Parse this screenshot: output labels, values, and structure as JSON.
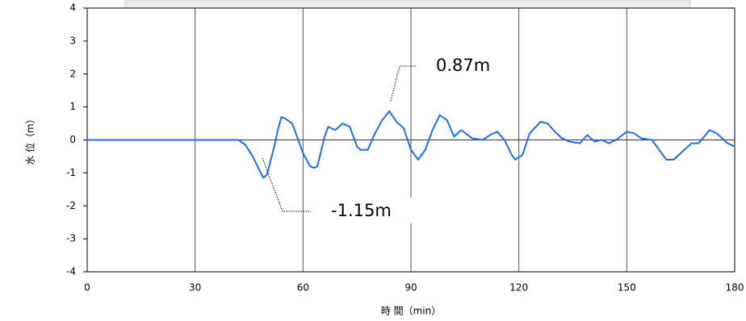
{
  "chart_data": {
    "type": "line",
    "y_label": "水 位（m）",
    "x_label": "時 間（min）",
    "x": [
      0,
      42,
      44,
      46,
      48,
      49,
      50,
      52,
      53,
      54,
      55,
      57,
      58,
      60,
      62,
      63,
      64,
      66,
      67,
      69,
      71,
      73,
      75,
      76,
      78,
      80,
      82,
      84,
      86,
      88,
      90,
      92,
      94,
      96,
      98,
      100,
      102,
      104,
      107,
      110,
      112,
      114,
      116,
      118,
      119,
      121,
      123,
      126,
      128,
      130,
      132,
      134,
      137,
      139,
      141,
      143,
      145,
      147,
      150,
      152,
      154,
      157,
      159,
      161,
      163,
      165,
      168,
      170,
      173,
      175,
      178,
      180
    ],
    "series": [
      {
        "color": "#1e6fe6",
        "values": [
          0,
          0,
          -0.15,
          -0.5,
          -0.95,
          -1.15,
          -1.05,
          -0.2,
          0.3,
          0.7,
          0.65,
          0.5,
          0.2,
          -0.4,
          -0.8,
          -0.85,
          -0.8,
          0.1,
          0.4,
          0.3,
          0.5,
          0.4,
          -0.2,
          -0.3,
          -0.3,
          0.2,
          0.6,
          0.87,
          0.55,
          0.35,
          -0.3,
          -0.6,
          -0.3,
          0.3,
          0.75,
          0.6,
          0.1,
          0.3,
          0.05,
          0,
          0.15,
          0.25,
          0,
          -0.45,
          -0.6,
          -0.45,
          0.2,
          0.55,
          0.5,
          0.25,
          0.05,
          -0.05,
          -0.1,
          0.15,
          -0.05,
          0,
          -0.1,
          0,
          0.25,
          0.2,
          0.05,
          0,
          -0.3,
          -0.6,
          -0.6,
          -0.4,
          -0.1,
          -0.1,
          0.3,
          0.2,
          -0.1,
          -0.2
        ]
      }
    ],
    "xlim": [
      0,
      180
    ],
    "xticks": [
      0,
      30,
      60,
      90,
      120,
      150,
      180
    ],
    "ylim": [
      -4,
      4
    ],
    "yticks": [
      -4,
      -3,
      -2,
      -1,
      0,
      1,
      2,
      3,
      4
    ],
    "grid": "x",
    "annotations": [
      {
        "text": "0.87m"
      },
      {
        "text": "-1.15m"
      }
    ]
  }
}
